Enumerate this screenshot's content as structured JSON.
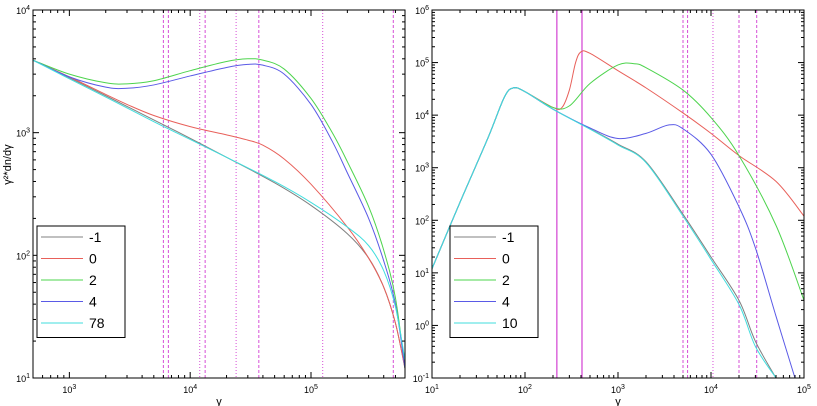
{
  "chart_data": [
    {
      "type": "line",
      "xscale": "log",
      "yscale": "log",
      "xlim": [
        500,
        600000
      ],
      "ylim": [
        10,
        10000
      ],
      "xlabel": "γ",
      "ylabel": "γ²*dn/dγ",
      "grid": false,
      "legend_position": "lower-left",
      "x_ticks": [
        {
          "value": 1000,
          "base": "10",
          "exp": "3"
        },
        {
          "value": 10000,
          "base": "10",
          "exp": "4"
        },
        {
          "value": 100000,
          "base": "10",
          "exp": "5"
        }
      ],
      "y_ticks": [
        {
          "value": 10,
          "base": "10",
          "exp": "1"
        },
        {
          "value": 100,
          "base": "10",
          "exp": "2"
        },
        {
          "value": 1000,
          "base": "10",
          "exp": "3"
        },
        {
          "value": 10000,
          "base": "10",
          "exp": "4"
        }
      ],
      "vlines": [
        {
          "x": 6000,
          "style": "dashed"
        },
        {
          "x": 6600,
          "style": "dashed"
        },
        {
          "x": 12000,
          "style": "dotted"
        },
        {
          "x": 13300,
          "style": "dashed"
        },
        {
          "x": 24000,
          "style": "dotted"
        },
        {
          "x": 37000,
          "style": "dashed"
        },
        {
          "x": 125000,
          "style": "dotted"
        },
        {
          "x": 480000,
          "style": "dashed"
        }
      ],
      "series": [
        {
          "name": "-1",
          "color": "#808080",
          "x": [
            500,
            1000,
            2000,
            5000,
            10000,
            20000,
            50000,
            100000,
            200000,
            300000,
            400000,
            500000,
            600000
          ],
          "y": [
            3900,
            2800,
            2000,
            1270,
            900,
            630,
            390,
            255,
            150,
            95,
            55,
            28,
            12
          ]
        },
        {
          "name": "0",
          "color": "#e8605a",
          "x": [
            500,
            1000,
            2000,
            3000,
            5000,
            10000,
            20000,
            30000,
            40000,
            60000,
            100000,
            200000,
            300000,
            400000,
            500000,
            600000
          ],
          "y": [
            3900,
            2850,
            2050,
            1700,
            1380,
            1120,
            960,
            870,
            790,
            610,
            380,
            170,
            95,
            55,
            28,
            12
          ]
        },
        {
          "name": "2",
          "color": "#4ed44e",
          "x": [
            500,
            1000,
            2000,
            3000,
            5000,
            10000,
            20000,
            30000,
            40000,
            60000,
            100000,
            150000,
            200000,
            300000,
            400000,
            500000,
            600000
          ],
          "y": [
            3900,
            3000,
            2550,
            2500,
            2650,
            3200,
            3800,
            4000,
            3900,
            3300,
            1900,
            1000,
            580,
            250,
            110,
            45,
            12
          ]
        },
        {
          "name": "4",
          "color": "#5a5ae6",
          "x": [
            500,
            1000,
            2000,
            3000,
            5000,
            10000,
            20000,
            30000,
            40000,
            60000,
            100000,
            150000,
            200000,
            300000,
            400000,
            500000,
            600000
          ],
          "y": [
            3900,
            2850,
            2350,
            2300,
            2450,
            2900,
            3400,
            3600,
            3550,
            3000,
            1700,
            850,
            470,
            200,
            90,
            40,
            12
          ]
        },
        {
          "name": "78",
          "color": "#40dede",
          "x": [
            500,
            1000,
            2000,
            5000,
            10000,
            20000,
            50000,
            100000,
            200000,
            300000,
            400000,
            500000,
            600000
          ],
          "y": [
            3900,
            2750,
            1950,
            1230,
            880,
            630,
            400,
            270,
            170,
            120,
            75,
            38,
            14
          ]
        }
      ]
    },
    {
      "type": "line",
      "xscale": "log",
      "yscale": "log",
      "xlim": [
        10,
        100000
      ],
      "ylim": [
        0.1,
        1000000
      ],
      "xlabel": "γ",
      "ylabel": "",
      "grid": false,
      "legend_position": "lower-left",
      "x_ticks": [
        {
          "value": 10,
          "base": "10",
          "exp": "1"
        },
        {
          "value": 100,
          "base": "10",
          "exp": "2"
        },
        {
          "value": 1000,
          "base": "10",
          "exp": "3"
        },
        {
          "value": 10000,
          "base": "10",
          "exp": "4"
        },
        {
          "value": 100000,
          "base": "10",
          "exp": "5"
        }
      ],
      "y_ticks": [
        {
          "value": 0.1,
          "base": "10",
          "exp": "-1"
        },
        {
          "value": 1,
          "base": "10",
          "exp": "0"
        },
        {
          "value": 10,
          "base": "10",
          "exp": "1"
        },
        {
          "value": 100,
          "base": "10",
          "exp": "2"
        },
        {
          "value": 1000,
          "base": "10",
          "exp": "3"
        },
        {
          "value": 10000,
          "base": "10",
          "exp": "4"
        },
        {
          "value": 100000,
          "base": "10",
          "exp": "5"
        },
        {
          "value": 1000000,
          "base": "10",
          "exp": "6"
        }
      ],
      "vlines": [
        {
          "x": 220,
          "style": "solid"
        },
        {
          "x": 410,
          "style": "solid"
        },
        {
          "x": 5000,
          "style": "dashed"
        },
        {
          "x": 5600,
          "style": "dashed"
        },
        {
          "x": 10500,
          "style": "dotted"
        },
        {
          "x": 20000,
          "style": "dashed"
        },
        {
          "x": 31000,
          "style": "dashed"
        }
      ],
      "series": [
        {
          "name": "-1",
          "color": "#808080",
          "x": [
            10,
            20,
            40,
            60,
            75,
            100,
            200,
            500,
            1000,
            2000,
            5000,
            10000,
            20000,
            30000,
            50000
          ],
          "y": [
            12,
            220,
            3700,
            22000,
            33000,
            28000,
            13000,
            5500,
            2800,
            1300,
            130,
            20,
            3,
            0.5,
            0.1
          ]
        },
        {
          "name": "0",
          "color": "#e8605a",
          "x": [
            10,
            20,
            40,
            60,
            75,
            100,
            200,
            250,
            300,
            350,
            400,
            500,
            1000,
            2000,
            5000,
            10000,
            20000,
            50000,
            100000
          ],
          "y": [
            12,
            220,
            3700,
            22000,
            33000,
            28000,
            14000,
            14000,
            30000,
            100000,
            160000,
            150000,
            70000,
            33000,
            11000,
            4500,
            1700,
            550,
            120
          ]
        },
        {
          "name": "2",
          "color": "#4ed44e",
          "x": [
            10,
            20,
            40,
            60,
            75,
            100,
            200,
            300,
            500,
            1000,
            1500,
            2000,
            5000,
            10000,
            20000,
            50000,
            100000
          ],
          "y": [
            12,
            220,
            3700,
            22000,
            33000,
            28000,
            14000,
            15000,
            40000,
            90000,
            95000,
            80000,
            30000,
            9000,
            1700,
            80,
            3
          ]
        },
        {
          "name": "4",
          "color": "#5a5ae6",
          "x": [
            10,
            20,
            40,
            60,
            75,
            100,
            200,
            500,
            1000,
            2000,
            3500,
            5000,
            10000,
            20000,
            30000,
            50000,
            80000
          ],
          "y": [
            12,
            220,
            3700,
            22000,
            33000,
            28000,
            13000,
            5700,
            3600,
            4500,
            6500,
            5500,
            1800,
            180,
            30,
            1.5,
            0.1
          ]
        },
        {
          "name": "10",
          "color": "#40dede",
          "x": [
            10,
            20,
            40,
            60,
            75,
            100,
            200,
            500,
            1000,
            2000,
            5000,
            10000,
            20000,
            30000,
            50000
          ],
          "y": [
            12,
            220,
            3700,
            22000,
            33000,
            28000,
            13000,
            5400,
            2700,
            1250,
            120,
            18,
            2.5,
            0.4,
            0.1
          ]
        }
      ]
    }
  ]
}
